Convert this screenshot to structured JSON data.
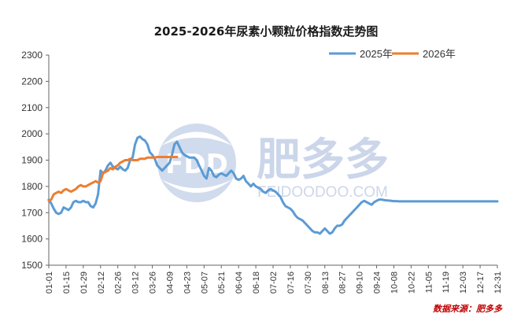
{
  "chart_data": {
    "type": "line",
    "title": "2025-2026年尿素小颗粒价格指数走势图",
    "xlabel": "",
    "ylabel": "",
    "ylim": [
      1500,
      2300
    ],
    "yticks": [
      1500,
      1600,
      1700,
      1800,
      1900,
      2000,
      2100,
      2200,
      2300
    ],
    "xticks": [
      "01-01",
      "01-15",
      "01-29",
      "02-12",
      "02-26",
      "03-12",
      "03-26",
      "04-09",
      "04-23",
      "05-07",
      "05-21",
      "06-04",
      "06-18",
      "07-02",
      "07-16",
      "07-30",
      "08-13",
      "08-27",
      "09-10",
      "09-24",
      "10-08",
      "10-22",
      "11-05",
      "11-19",
      "12-03",
      "12-17",
      "12-31"
    ],
    "grid": false,
    "legend_position": "top-right",
    "series": [
      {
        "name": "2025年",
        "color": "#5b9bd5",
        "x": [
          0,
          2,
          4,
          6,
          8,
          10,
          12,
          14,
          16,
          18,
          20,
          22,
          24,
          26,
          28,
          30,
          32,
          34,
          36,
          38,
          40,
          42,
          44,
          46,
          48,
          50,
          52,
          54,
          56,
          58,
          60,
          62,
          64,
          66,
          68,
          70,
          72,
          74,
          76,
          78,
          80,
          82,
          84,
          86,
          88,
          90,
          92,
          94,
          96,
          98,
          100,
          102,
          104,
          106,
          108,
          110,
          112,
          114,
          116,
          118,
          120,
          122,
          124,
          126,
          128,
          130,
          132,
          134,
          136,
          138,
          140,
          142,
          144,
          146,
          148,
          150,
          152,
          154,
          156,
          158,
          160,
          162,
          164,
          166,
          168,
          170,
          172,
          174,
          176,
          178,
          180,
          182,
          184,
          186,
          188,
          190,
          192,
          194,
          196,
          198,
          200,
          202,
          204,
          206,
          208,
          210,
          212,
          214,
          216,
          218,
          220,
          222,
          224,
          226,
          228,
          230,
          232,
          234,
          236,
          238,
          240,
          242,
          244,
          246,
          248,
          250,
          252,
          254,
          256,
          258,
          260,
          262,
          264,
          266,
          268,
          270,
          272,
          274,
          276,
          278,
          280,
          282,
          284,
          286,
          288,
          290,
          292,
          294,
          296,
          298,
          300,
          302,
          304,
          306,
          308,
          310,
          312,
          314,
          316,
          318,
          320,
          322,
          324,
          326,
          328,
          330,
          332,
          334,
          336,
          338,
          340,
          342,
          344,
          346,
          348,
          350,
          352,
          354,
          356,
          358,
          360,
          362,
          364
        ],
        "values": [
          1750,
          1735,
          1715,
          1700,
          1695,
          1700,
          1720,
          1715,
          1710,
          1720,
          1740,
          1745,
          1740,
          1740,
          1745,
          1740,
          1740,
          1725,
          1720,
          1735,
          1770,
          1860,
          1850,
          1860,
          1880,
          1890,
          1875,
          1870,
          1865,
          1875,
          1865,
          1860,
          1870,
          1900,
          1910,
          1960,
          1985,
          1990,
          1980,
          1975,
          1960,
          1930,
          1920,
          1905,
          1880,
          1870,
          1860,
          1870,
          1880,
          1890,
          1920,
          1960,
          1970,
          1950,
          1930,
          1920,
          1915,
          1910,
          1910,
          1910,
          1900,
          1880,
          1860,
          1840,
          1830,
          1870,
          1860,
          1840,
          1835,
          1845,
          1850,
          1845,
          1840,
          1850,
          1860,
          1850,
          1830,
          1825,
          1830,
          1840,
          1820,
          1810,
          1800,
          1810,
          1800,
          1795,
          1790,
          1780,
          1775,
          1785,
          1790,
          1785,
          1780,
          1770,
          1760,
          1740,
          1725,
          1720,
          1715,
          1705,
          1690,
          1680,
          1675,
          1670,
          1660,
          1650,
          1640,
          1630,
          1625,
          1625,
          1620,
          1630,
          1640,
          1630,
          1620,
          1625,
          1640,
          1650,
          1650,
          1655,
          1670,
          1680,
          1690,
          1700,
          1710,
          1720,
          1730,
          1740,
          1745,
          1740,
          1735,
          1730,
          1740,
          1745,
          1750,
          1750,
          1748,
          1747,
          1746,
          1745,
          1744,
          1744,
          1743,
          1743,
          1743,
          1743,
          1743,
          1743,
          1743,
          1743,
          1743,
          1743,
          1743,
          1743,
          1743,
          1743,
          1743,
          1743,
          1743,
          1743,
          1743,
          1743,
          1743,
          1743,
          1743,
          1743,
          1743,
          1743,
          1743,
          1743,
          1743,
          1743,
          1743,
          1743,
          1743,
          1743,
          1743,
          1743,
          1743,
          1743,
          1743,
          1743,
          1743
        ]
      },
      {
        "name": "2026年",
        "color": "#ed7d31",
        "x": [
          0,
          2,
          4,
          6,
          8,
          10,
          12,
          14,
          16,
          18,
          20,
          22,
          24,
          26,
          28,
          30,
          32,
          34,
          36,
          38,
          40,
          42,
          44,
          46,
          48,
          50,
          52,
          54,
          56,
          58,
          60,
          62,
          64,
          66,
          68,
          70,
          72,
          74,
          76,
          78,
          80,
          82,
          84,
          86,
          88,
          90,
          92,
          94,
          96,
          98,
          100,
          102,
          104
        ],
        "values": [
          1745,
          1750,
          1770,
          1775,
          1780,
          1775,
          1785,
          1790,
          1785,
          1780,
          1785,
          1790,
          1800,
          1805,
          1800,
          1800,
          1805,
          1810,
          1815,
          1820,
          1815,
          1820,
          1850,
          1855,
          1860,
          1870,
          1865,
          1875,
          1880,
          1890,
          1895,
          1900,
          1900,
          1905,
          1900,
          1900,
          1900,
          1905,
          1905,
          1905,
          1910,
          1910,
          1910,
          1910,
          1912,
          1912,
          1912,
          1912,
          1912,
          1912,
          1912,
          1912,
          1912
        ]
      }
    ],
    "source": "数据来源：肥多多"
  },
  "watermark": {
    "logo": "FDD",
    "brand": "肥多多",
    "site": "FEIDOODOO.COM"
  }
}
